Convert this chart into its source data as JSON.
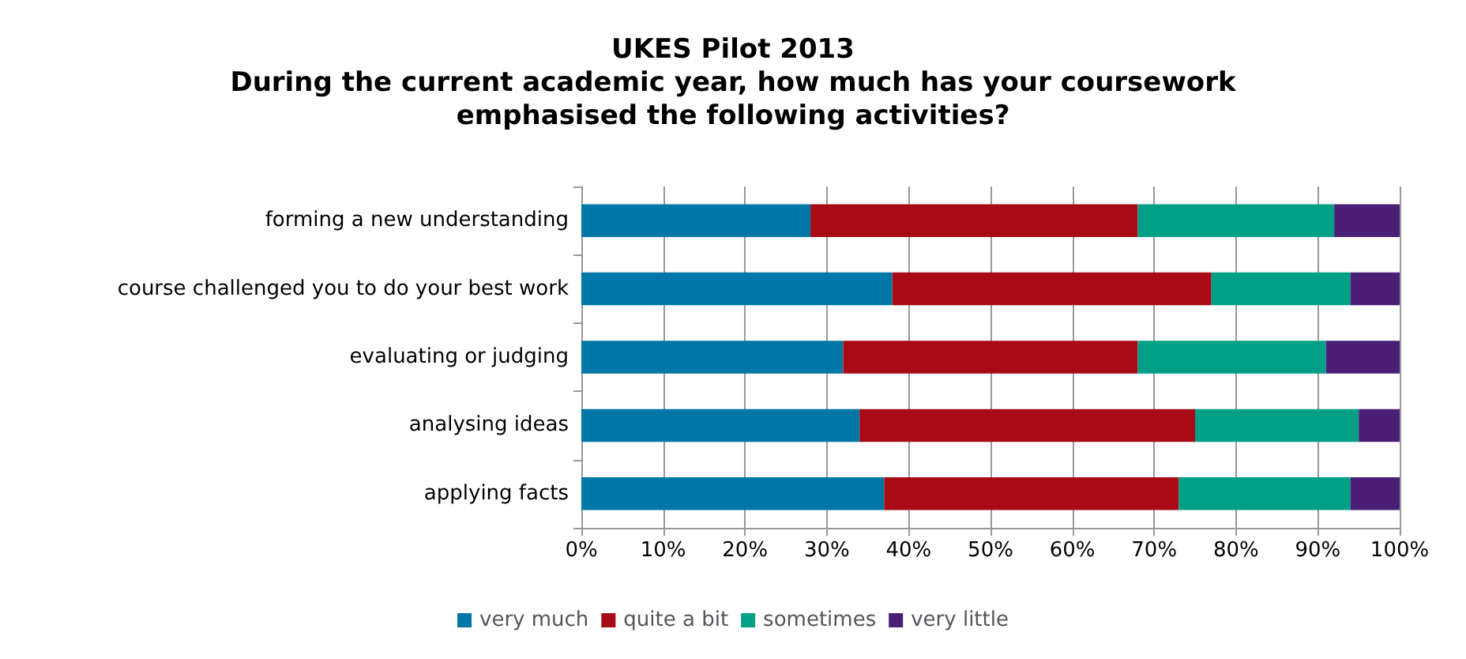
{
  "chart_data": {
    "type": "bar",
    "orientation": "horizontal",
    "stacked": true,
    "title": "UKES Pilot 2013\nDuring the current academic year, how much has your coursework\nemphasised the following activities?",
    "categories": [
      "forming a new understanding",
      "course challenged you to do your best work",
      "evaluating or judging",
      "analysing ideas",
      "applying facts"
    ],
    "series": [
      {
        "name": "very much",
        "color": "#0077a6",
        "values": [
          28,
          38,
          32,
          34,
          37
        ]
      },
      {
        "name": "quite a bit",
        "color": "#a80a16",
        "values": [
          40,
          39,
          36,
          41,
          36
        ]
      },
      {
        "name": "sometimes",
        "color": "#00a086",
        "values": [
          24,
          17,
          23,
          20,
          21
        ]
      },
      {
        "name": "very little",
        "color": "#4b1f78",
        "values": [
          8,
          6,
          9,
          5,
          6
        ]
      }
    ],
    "xlim": [
      0,
      100
    ],
    "xticks": [
      {
        "value": 0,
        "label": "0%"
      },
      {
        "value": 10,
        "label": "10%"
      },
      {
        "value": 20,
        "label": "20%"
      },
      {
        "value": 30,
        "label": "30%"
      },
      {
        "value": 40,
        "label": "40%"
      },
      {
        "value": 50,
        "label": "50%"
      },
      {
        "value": 60,
        "label": "60%"
      },
      {
        "value": 70,
        "label": "70%"
      },
      {
        "value": 80,
        "label": "80%"
      },
      {
        "value": 90,
        "label": "90%"
      },
      {
        "value": 100,
        "label": "100%"
      }
    ],
    "grid": "x",
    "legend": "bottom"
  }
}
